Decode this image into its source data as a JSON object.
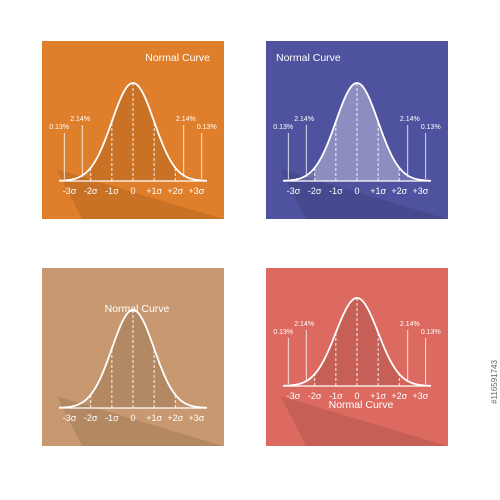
{
  "stock_id": "#116591743",
  "chart_data": [
    {
      "type": "line",
      "title": "Normal Curve",
      "title_position": "top-right",
      "background": "#E07F2B",
      "xlabels": [
        "-3σ",
        "-2σ",
        "-1σ",
        "0",
        "+1σ",
        "+2σ",
        "+3σ"
      ],
      "annotations": [
        {
          "text": "0.13%",
          "x": -3.3
        },
        {
          "text": "2.14%",
          "x": -2.5
        },
        {
          "text": "2.14%",
          "x": 2.5
        },
        {
          "text": "0.13%",
          "x": 3.3
        }
      ],
      "x_range": [
        -3.5,
        3.5
      ],
      "tail_shading": "none"
    },
    {
      "type": "line",
      "title": "Normal Curve",
      "title_position": "top-left",
      "background": "#4F529E",
      "xlabels": [
        "-3σ",
        "-2σ",
        "-1σ",
        "0",
        "+1σ",
        "+2σ",
        "+3σ"
      ],
      "annotations": [
        {
          "text": "0.13%",
          "x": -3.3
        },
        {
          "text": "2.14%",
          "x": -2.5
        },
        {
          "text": "2.14%",
          "x": 2.5
        },
        {
          "text": "0.13%",
          "x": 3.3
        }
      ],
      "x_range": [
        -3.5,
        3.5
      ],
      "tail_shading": "light"
    },
    {
      "type": "line",
      "title": "Normal Curve",
      "title_position": "top-center",
      "background": "#C89970",
      "xlabels": [
        "-3σ",
        "-2σ",
        "-1σ",
        "0",
        "+1σ",
        "+2σ",
        "+3σ"
      ],
      "annotations": [],
      "x_range": [
        -3.5,
        3.5
      ],
      "tail_shading": "none"
    },
    {
      "type": "line",
      "title": "Normal Curve",
      "title_position": "bottom-center",
      "background": "#DD6A60",
      "xlabels": [
        "-3σ",
        "-2σ",
        "-1σ",
        "0",
        "+1σ",
        "+2σ",
        "+3σ"
      ],
      "annotations": [
        {
          "text": "0.13%",
          "x": -3.3
        },
        {
          "text": "2.14%",
          "x": -2.5
        },
        {
          "text": "2.14%",
          "x": 2.5
        },
        {
          "text": "0.13%",
          "x": 3.3
        }
      ],
      "x_range": [
        -3.5,
        3.5
      ],
      "tail_shading": "none"
    }
  ]
}
